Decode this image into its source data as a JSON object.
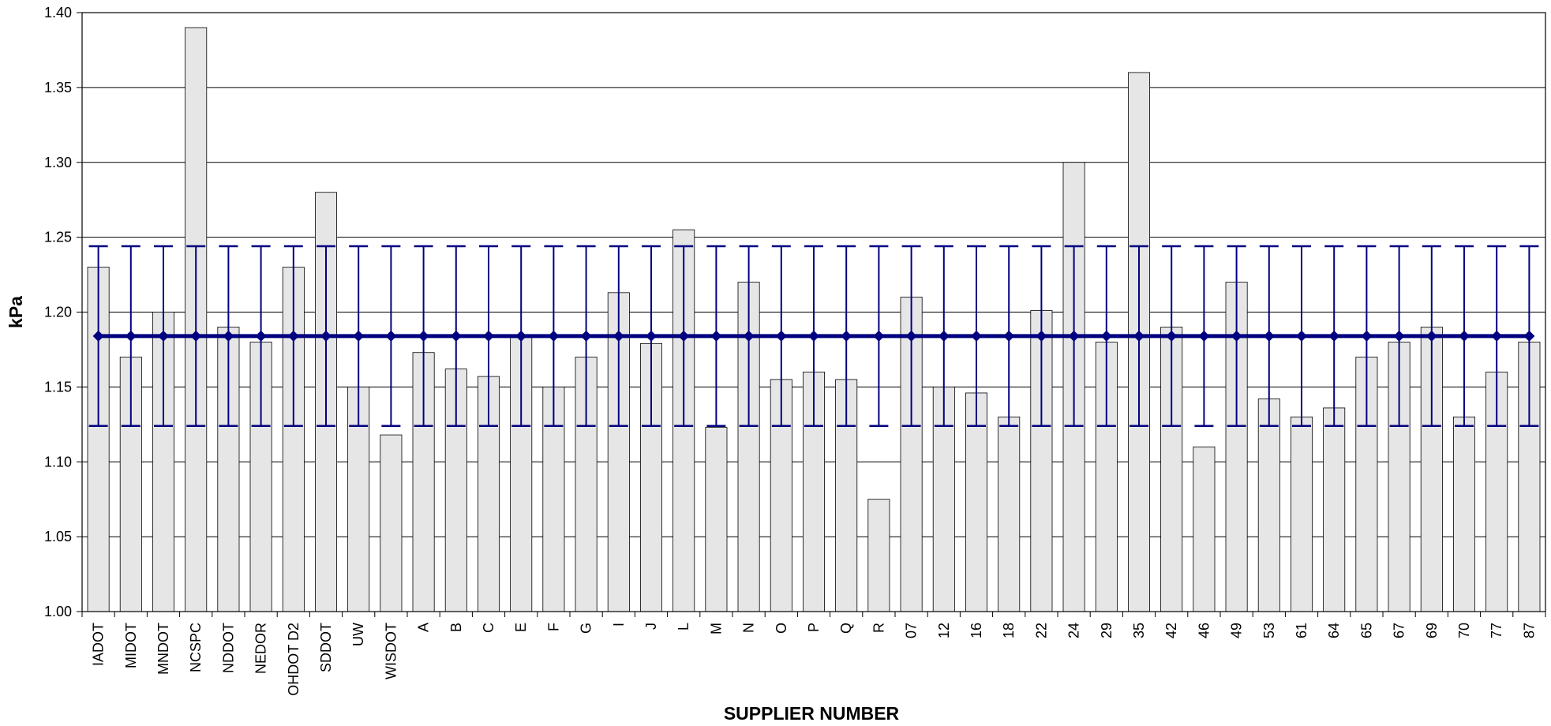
{
  "chart_data": {
    "type": "bar",
    "title": "",
    "xlabel": "SUPPLIER NUMBER",
    "ylabel": "kPa",
    "ylim": [
      1.0,
      1.4
    ],
    "yticks": [
      "1.00",
      "1.05",
      "1.10",
      "1.15",
      "1.20",
      "1.25",
      "1.30",
      "1.35",
      "1.40"
    ],
    "grid": true,
    "legend": "none",
    "categories": [
      "IADOT",
      "MIDOT",
      "MNDOT",
      "NCSPC",
      "NDDOT",
      "NEDOR",
      "OHDOT D2",
      "SDDOT",
      "UW",
      "WISDOT",
      "A",
      "B",
      "C",
      "E",
      "F",
      "G",
      "I",
      "J",
      "L",
      "M",
      "N",
      "O",
      "P",
      "Q",
      "R",
      "07",
      "12",
      "16",
      "18",
      "22",
      "24",
      "29",
      "35",
      "42",
      "46",
      "49",
      "53",
      "61",
      "64",
      "65",
      "67",
      "69",
      "70",
      "77",
      "87"
    ],
    "series": [
      {
        "type": "bar",
        "values": [
          1.23,
          1.17,
          1.2,
          1.39,
          1.19,
          1.18,
          1.23,
          1.28,
          1.15,
          1.118,
          1.173,
          1.162,
          1.157,
          1.185,
          1.15,
          1.17,
          1.213,
          1.179,
          1.255,
          1.123,
          1.22,
          1.155,
          1.16,
          1.155,
          1.075,
          1.21,
          1.15,
          1.146,
          1.13,
          1.201,
          1.3,
          1.18,
          1.36,
          1.19,
          1.11,
          1.22,
          1.142,
          1.13,
          1.136,
          1.17,
          1.18,
          1.19,
          1.13,
          1.16,
          1.18
        ],
        "color": "#e6e6e6"
      },
      {
        "type": "line",
        "value": 1.184,
        "error_low": 1.124,
        "error_high": 1.244,
        "color": "#000080"
      }
    ]
  }
}
